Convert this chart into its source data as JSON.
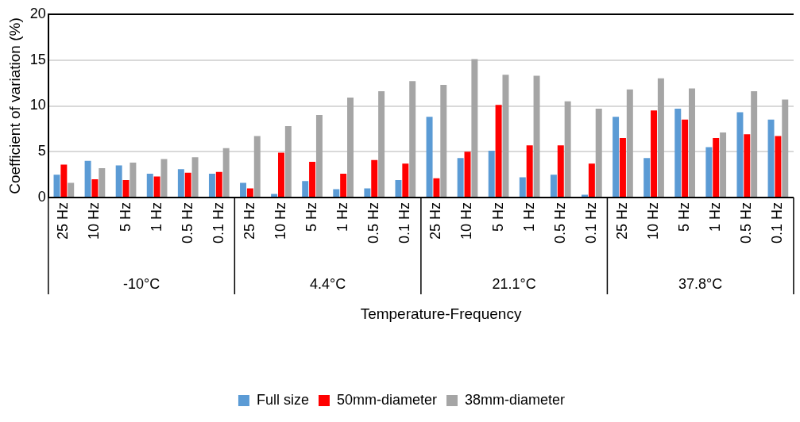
{
  "chart_data": {
    "type": "bar",
    "xlabel": "Temperature-Frequency",
    "ylabel": "Coefficient of variation (%)",
    "categories": [
      "25 Hz",
      "10 Hz",
      "5 Hz",
      "1 Hz",
      "0.5 Hz",
      "0.1 Hz",
      "25 Hz",
      "10 Hz",
      "5 Hz",
      "1 Hz",
      "0.5 Hz",
      "0.1 Hz",
      "25 Hz",
      "10 Hz",
      "5 Hz",
      "1 Hz",
      "0.5 Hz",
      "0.1 Hz",
      "25 Hz",
      "10 Hz",
      "5 Hz",
      "1 Hz",
      "0.5 Hz",
      "0.1 Hz"
    ],
    "annotations": [
      "-10°C",
      "4.4°C",
      "21.1°C",
      "37.8°C"
    ],
    "series": [
      {
        "name": "Full size",
        "color": "#5b9bd5",
        "values": [
          2.5,
          4.0,
          3.5,
          2.6,
          3.1,
          2.6,
          1.6,
          0.4,
          1.8,
          0.9,
          1.0,
          1.9,
          8.8,
          4.3,
          5.1,
          2.2,
          2.5,
          0.3,
          8.8,
          4.3,
          9.7,
          5.5,
          9.3,
          8.5
        ]
      },
      {
        "name": "50mm-diameter",
        "color": "#ff0000",
        "values": [
          3.6,
          2.0,
          1.9,
          2.3,
          2.7,
          2.8,
          1.0,
          4.9,
          3.9,
          2.6,
          4.1,
          3.7,
          2.1,
          5.0,
          10.1,
          5.7,
          5.7,
          3.7,
          6.5,
          9.5,
          8.5,
          6.5,
          6.9,
          6.7
        ]
      },
      {
        "name": "38mm-diameter",
        "color": "#a5a5a5",
        "values": [
          1.6,
          3.2,
          3.8,
          4.2,
          4.4,
          5.4,
          6.7,
          7.8,
          9.0,
          10.9,
          11.6,
          12.7,
          12.3,
          15.1,
          13.4,
          13.3,
          10.5,
          9.7,
          11.8,
          13.0,
          11.9,
          7.1,
          11.6,
          10.7
        ]
      }
    ],
    "ylim": [
      0,
      20
    ],
    "yticks": [
      0,
      5,
      10,
      15,
      20
    ],
    "grid": "y",
    "legend": "bottom"
  }
}
